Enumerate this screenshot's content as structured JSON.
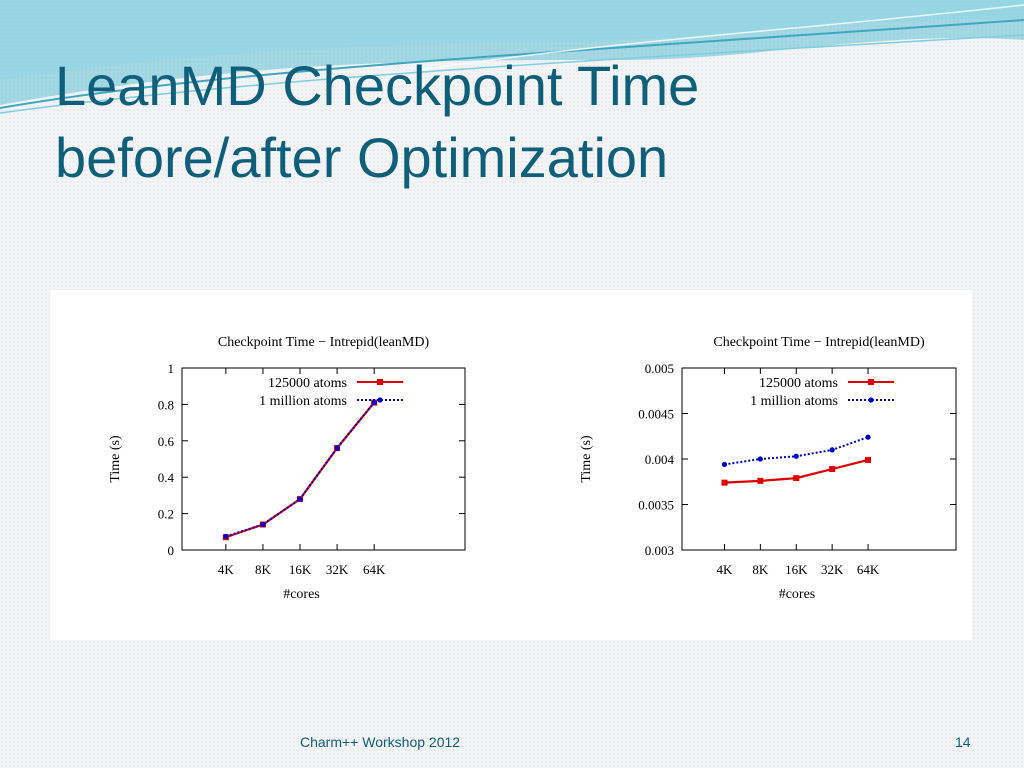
{
  "slide": {
    "title_line1": "LeanMD Checkpoint Time",
    "title_line2": "before/after Optimization"
  },
  "footer": {
    "text": "Charm++ Workshop 2012",
    "page_number": "14"
  },
  "colors": {
    "title": "#0f5f7a",
    "series_125000": "#e00000",
    "series_1million": "#0000cc",
    "deco_teal": "#5fc0d4"
  },
  "chart_data": [
    {
      "type": "line",
      "title": "Checkpoint Time − Intrepid(leanMD)",
      "xlabel": "#cores",
      "ylabel": "Time (s)",
      "categories": [
        "4K",
        "8K",
        "16K",
        "32K",
        "64K"
      ],
      "ylim": [
        0,
        1
      ],
      "yticks": [
        0,
        0.2,
        0.4,
        0.6,
        0.8,
        1
      ],
      "ytick_labels": [
        "0",
        "0.2",
        "0.4",
        "0.6",
        "0.8",
        "1"
      ],
      "legend": "top-left",
      "grid": false,
      "series": [
        {
          "name": "125000 atoms",
          "color": "#e00000",
          "dash": "solid",
          "values": [
            0.07,
            0.14,
            0.28,
            0.56,
            0.81
          ]
        },
        {
          "name": "1 million atoms",
          "color": "#0000cc",
          "dash": "dotted",
          "values": [
            0.075,
            0.14,
            0.28,
            0.56,
            0.81
          ]
        }
      ]
    },
    {
      "type": "line",
      "title": "Checkpoint Time − Intrepid(leanMD)",
      "xlabel": "#cores",
      "ylabel": "Time (s)",
      "categories": [
        "4K",
        "8K",
        "16K",
        "32K",
        "64K"
      ],
      "ylim": [
        0.003,
        0.005
      ],
      "yticks": [
        0.003,
        0.0035,
        0.004,
        0.0045,
        0.005
      ],
      "ytick_labels": [
        "0.003",
        "0.0035",
        "0.004",
        "0.0045",
        "0.005"
      ],
      "legend": "top-left",
      "grid": false,
      "series": [
        {
          "name": "125000 atoms",
          "color": "#e00000",
          "dash": "solid",
          "values": [
            0.00374,
            0.00376,
            0.00379,
            0.00389,
            0.00399
          ]
        },
        {
          "name": "1 million atoms",
          "color": "#0000cc",
          "dash": "dotted",
          "values": [
            0.00394,
            0.004,
            0.00403,
            0.0041,
            0.00424
          ]
        }
      ]
    }
  ]
}
